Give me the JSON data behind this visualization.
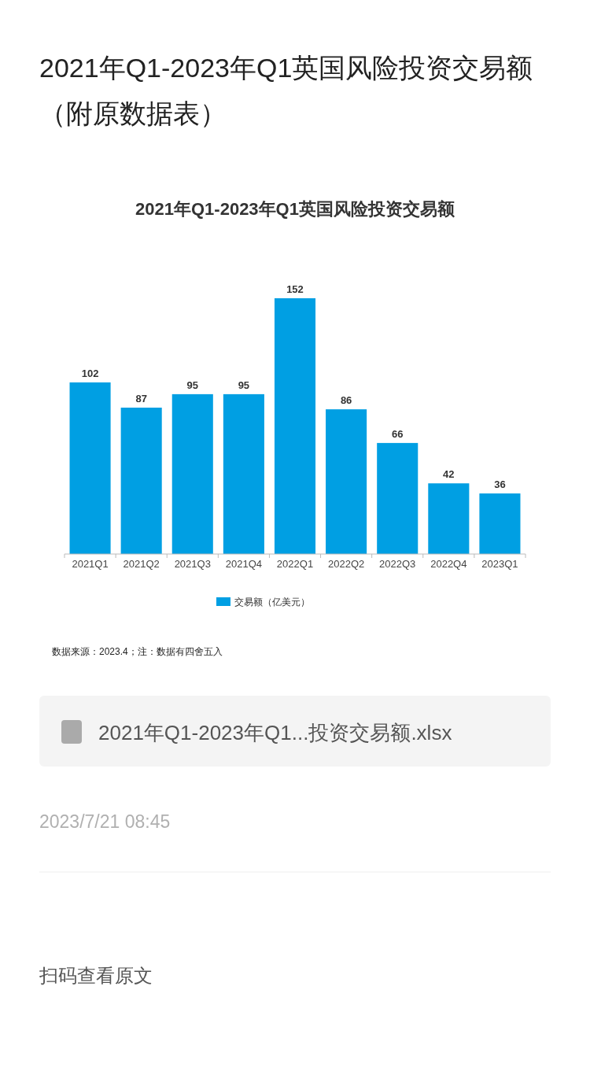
{
  "chart_data": {
    "type": "bar",
    "title": "2021年Q1-2023年Q1英国风险投资交易额",
    "categories": [
      "2021Q1",
      "2021Q2",
      "2021Q3",
      "2021Q4",
      "2022Q1",
      "2022Q2",
      "2022Q3",
      "2022Q4",
      "2023Q1"
    ],
    "series": [
      {
        "name": "交易额（亿美元）",
        "color": "#009fe3",
        "values": [
          102,
          87,
          95,
          95,
          152,
          86,
          66,
          42,
          36
        ]
      }
    ],
    "data_labels": true,
    "legend": "bottom",
    "annotations": [
      "2021年Q1-2023年Q1英国风险投资交易额（附原数据表）",
      "数据来源：2023.4；注：数据有四舍五入",
      "2021年Q1-2023年Q1...投资交易额.xlsx",
      "2023/7/21 08:45",
      "扫码查看原文"
    ]
  }
}
